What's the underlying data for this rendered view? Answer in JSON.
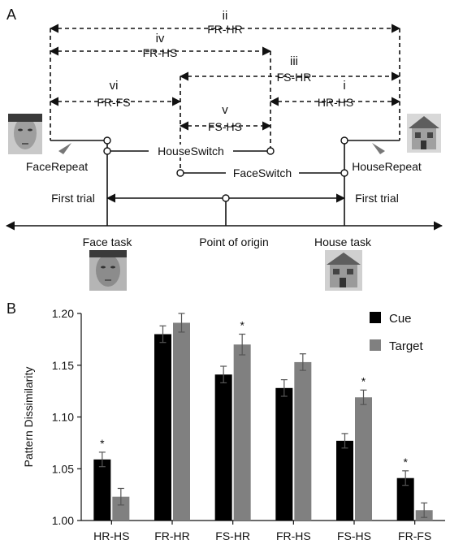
{
  "panel_a": {
    "letter": "A",
    "roman": [
      "i",
      "ii",
      "iii",
      "iv",
      "v",
      "vi"
    ],
    "pairs": [
      "HR-HS",
      "FR-HR",
      "FS-HR",
      "FR-HS",
      "FS-HS",
      "FR-FS"
    ],
    "conditions": {
      "face_repeat": "FaceRepeat",
      "house_repeat": "HouseRepeat",
      "house_switch": "HouseSwitch",
      "face_switch": "FaceSwitch"
    },
    "first_trial": "First trial",
    "axis": {
      "face_task": "Face task",
      "origin": "Point of origin",
      "house_task": "House task"
    }
  },
  "chart_data": {
    "panel_letter": "B",
    "type": "bar",
    "categories": [
      "HR-HS",
      "FR-HR",
      "FS-HR",
      "FR-HS",
      "FS-HS",
      "FR-FS"
    ],
    "series": [
      {
        "name": "Cue",
        "color": "#000000",
        "values": [
          1.059,
          1.18,
          1.141,
          1.128,
          1.077,
          1.041
        ],
        "errors": [
          0.007,
          0.008,
          0.008,
          0.008,
          0.007,
          0.007
        ]
      },
      {
        "name": "Target",
        "color": "#808080",
        "values": [
          1.023,
          1.191,
          1.17,
          1.153,
          1.119,
          1.01
        ],
        "errors": [
          0.008,
          0.009,
          0.01,
          0.008,
          0.007,
          0.007
        ]
      }
    ],
    "significance": [
      "*",
      "",
      "*",
      "",
      "*",
      "*"
    ],
    "ylabel": "Pattern Dissimilarity",
    "xlabel": "",
    "ylim": [
      1.0,
      1.2
    ],
    "yticks": [
      "1.00",
      "1.05",
      "1.10",
      "1.15",
      "1.20"
    ],
    "legend_position": "top-right",
    "grid": false
  }
}
